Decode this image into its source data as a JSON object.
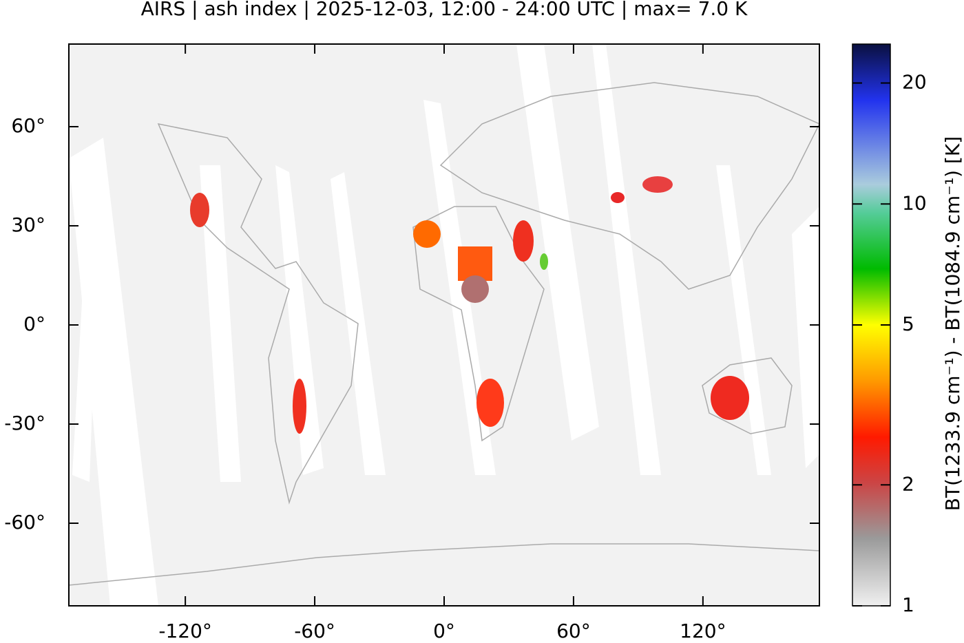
{
  "chart_data": {
    "type": "map",
    "title": "AIRS | ash index | 2025-12-03, 12:00 - 24:00 UTC | max= 7.0 K",
    "xlim": [
      -174,
      174
    ],
    "ylim": [
      -85,
      85
    ],
    "xticks": [
      {
        "value": -120,
        "label": "-120°"
      },
      {
        "value": -60,
        "label": "-60°"
      },
      {
        "value": 0,
        "label": "0°"
      },
      {
        "value": 60,
        "label": "60°"
      },
      {
        "value": 120,
        "label": "120°"
      }
    ],
    "yticks": [
      {
        "value": 60,
        "label": "60°"
      },
      {
        "value": 30,
        "label": "30°"
      },
      {
        "value": 0,
        "label": "0°"
      },
      {
        "value": -30,
        "label": "-30°"
      },
      {
        "value": -60,
        "label": "-60°"
      }
    ],
    "colorbar": {
      "label": "BT(1233.9 cm⁻¹) - BT(1084.9 cm⁻¹) [K]",
      "lim": [
        1,
        25
      ],
      "log": true,
      "ticks": [
        1,
        2,
        5,
        10,
        20
      ]
    }
  }
}
